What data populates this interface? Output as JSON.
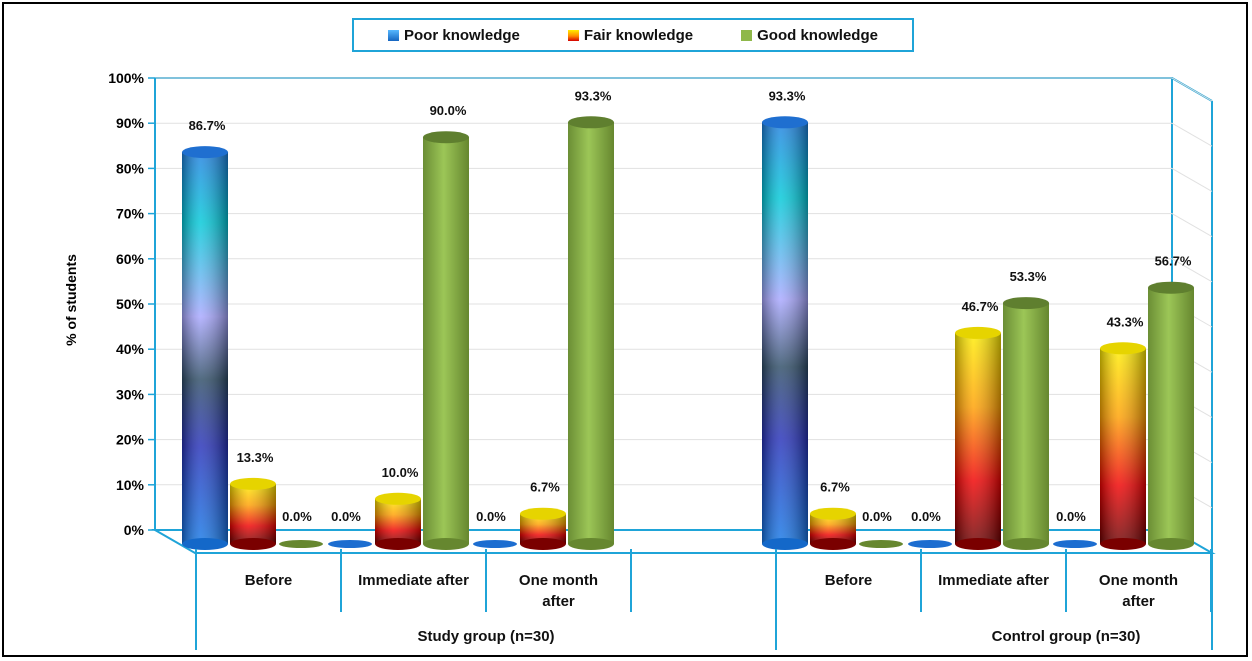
{
  "chart_data": {
    "type": "bar",
    "style": "3d-cylinder",
    "ylabel": "% of students",
    "ylim": [
      0,
      100
    ],
    "yticks": [
      "0%",
      "10%",
      "20%",
      "30%",
      "40%",
      "50%",
      "60%",
      "70%",
      "80%",
      "90%",
      "100%"
    ],
    "legend_position": "top-center",
    "series": [
      {
        "name": "Poor knowledge",
        "color": "#1e88e5"
      },
      {
        "name": "Fair knowledge",
        "color": "#ffd400"
      },
      {
        "name": "Good knowledge",
        "color": "#8fb84a"
      }
    ],
    "groups": [
      {
        "label": "Study group (n=30)",
        "categories": [
          "Before",
          "Immediate after",
          "One month after"
        ],
        "values": {
          "Poor knowledge": [
            86.7,
            0.0,
            0.0
          ],
          "Fair knowledge": [
            13.3,
            10.0,
            6.7
          ],
          "Good knowledge": [
            0.0,
            90.0,
            93.3
          ]
        },
        "labels": {
          "Poor knowledge": [
            "86.7%",
            "0.0%",
            "0.0%"
          ],
          "Fair knowledge": [
            "13.3%",
            "10.0%",
            "6.7%"
          ],
          "Good knowledge": [
            "0.0%",
            "90.0%",
            "93.3%"
          ]
        }
      },
      {
        "label": "Control group (n=30)",
        "categories": [
          "Before",
          "Immediate after",
          "One month after"
        ],
        "values": {
          "Poor knowledge": [
            93.3,
            0.0,
            0.0
          ],
          "Fair knowledge": [
            6.7,
            46.7,
            43.3
          ],
          "Good knowledge": [
            0.0,
            53.3,
            56.7
          ]
        },
        "labels": {
          "Poor knowledge": [
            "93.3%",
            "0.0%",
            "0.0%"
          ],
          "Fair knowledge": [
            "6.7%",
            "46.7%",
            "43.3%"
          ],
          "Good knowledge": [
            "0.0%",
            "53.3%",
            "56.7%"
          ]
        }
      }
    ]
  }
}
